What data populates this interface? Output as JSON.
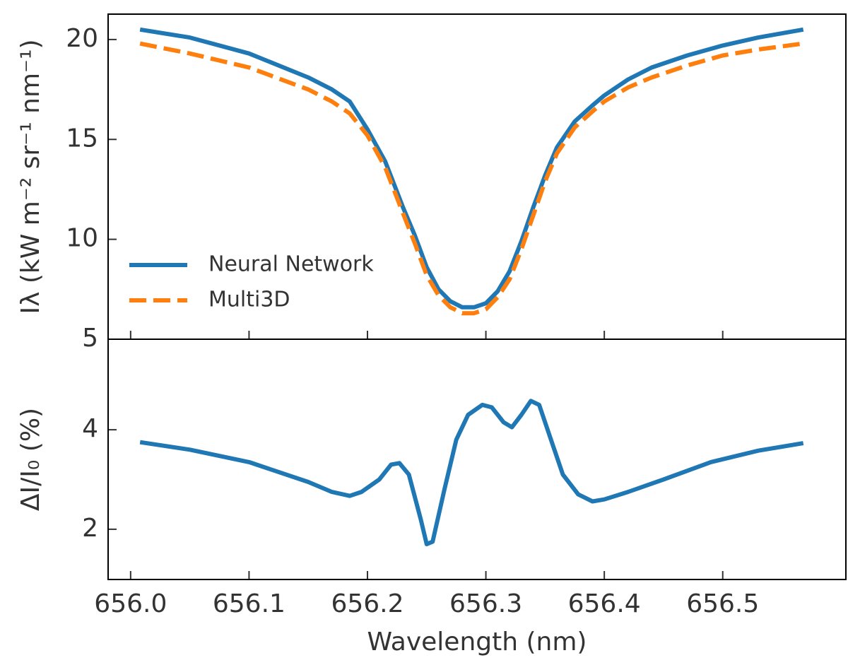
{
  "chart_data": [
    {
      "type": "line",
      "ylabel": "Iλ (kW m⁻² sr⁻¹ nm⁻¹)",
      "x": [
        656.008,
        656.05,
        656.1,
        656.15,
        656.17,
        656.185,
        656.2,
        656.215,
        656.23,
        656.24,
        656.25,
        656.26,
        656.27,
        656.28,
        656.29,
        656.3,
        656.31,
        656.32,
        656.33,
        656.34,
        656.35,
        656.36,
        656.375,
        656.39,
        656.4,
        656.42,
        656.44,
        656.47,
        656.5,
        656.53,
        656.568
      ],
      "series": [
        {
          "name": "Neural Network",
          "color": "#1f77b4",
          "style": "solid",
          "values": [
            20.5,
            20.1,
            19.3,
            18.1,
            17.5,
            16.9,
            15.5,
            13.9,
            11.6,
            10.2,
            8.6,
            7.5,
            6.9,
            6.6,
            6.6,
            6.8,
            7.4,
            8.4,
            9.9,
            11.6,
            13.2,
            14.6,
            15.9,
            16.7,
            17.2,
            18.0,
            18.6,
            19.2,
            19.7,
            20.1,
            20.5
          ]
        },
        {
          "name": "Multi3D",
          "color": "#ff7f0e",
          "style": "dashed",
          "values": [
            19.8,
            19.3,
            18.6,
            17.5,
            16.9,
            16.3,
            15.2,
            13.6,
            11.3,
            9.8,
            8.2,
            7.2,
            6.6,
            6.3,
            6.3,
            6.5,
            7.1,
            8.0,
            9.5,
            11.2,
            12.9,
            14.3,
            15.6,
            16.4,
            16.9,
            17.6,
            18.1,
            18.7,
            19.2,
            19.5,
            19.8
          ]
        }
      ],
      "xlim": [
        655.981,
        656.604
      ],
      "ylim": [
        5,
        21.27
      ],
      "yticks": [
        5,
        10,
        15,
        20
      ],
      "legend": "center left"
    },
    {
      "type": "line",
      "xlabel": "Wavelength (nm)",
      "ylabel": "ΔI/I₀ (%)",
      "x": [
        656.008,
        656.05,
        656.1,
        656.15,
        656.17,
        656.185,
        656.195,
        656.21,
        656.22,
        656.227,
        656.235,
        656.245,
        656.25,
        656.255,
        656.265,
        656.275,
        656.285,
        656.297,
        656.305,
        656.315,
        656.322,
        656.33,
        656.338,
        656.345,
        656.355,
        656.365,
        656.378,
        656.39,
        656.4,
        656.42,
        656.45,
        656.49,
        656.53,
        656.568
      ],
      "series": [
        {
          "color": "#1f77b4",
          "style": "solid",
          "values": [
            3.75,
            3.6,
            3.35,
            2.95,
            2.75,
            2.67,
            2.75,
            3.0,
            3.3,
            3.33,
            3.1,
            2.2,
            1.7,
            1.75,
            2.8,
            3.8,
            4.3,
            4.5,
            4.45,
            4.15,
            4.05,
            4.3,
            4.58,
            4.5,
            3.8,
            3.1,
            2.7,
            2.56,
            2.6,
            2.75,
            3.0,
            3.35,
            3.58,
            3.73
          ]
        }
      ],
      "xlim": [
        655.981,
        656.604
      ],
      "xticks": [
        {
          "value": 656.0,
          "label": "656.0"
        },
        656.1,
        656.2,
        656.3,
        656.4,
        656.5
      ],
      "ylim": [
        0.99,
        5.82
      ],
      "yticks": [
        2,
        4
      ]
    }
  ]
}
